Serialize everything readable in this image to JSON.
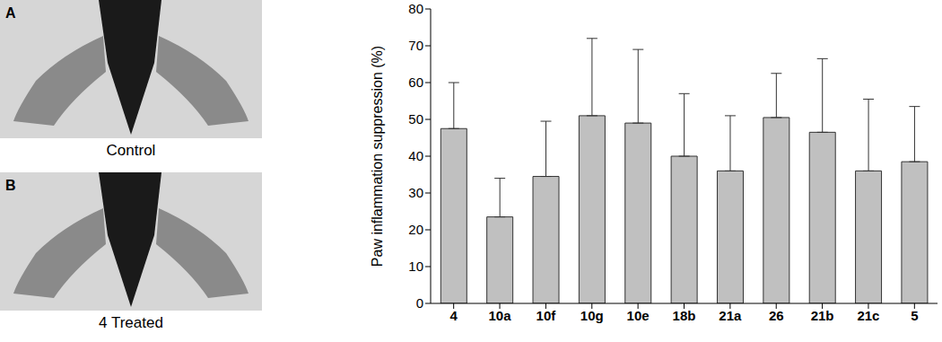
{
  "panels": [
    {
      "letter": "A",
      "caption": "Control"
    },
    {
      "letter": "B",
      "caption": "4 Treated"
    }
  ],
  "chart_data": {
    "type": "bar",
    "y_label": "Paw inflammation suppression (%)",
    "categories": [
      "4",
      "10a",
      "10f",
      "10g",
      "10e",
      "18b",
      "21a",
      "26",
      "21b",
      "21c",
      "5"
    ],
    "values": [
      47.5,
      23.5,
      34.5,
      51,
      49,
      40,
      36,
      50.5,
      46.5,
      36,
      38.5
    ],
    "errors": [
      12.5,
      10.5,
      15,
      21,
      20,
      17,
      15,
      12,
      20,
      19.5,
      15
    ],
    "color": "#c0c0c0",
    "ylim": [
      0,
      80
    ],
    "yticks": [
      0,
      10,
      20,
      30,
      40,
      50,
      60,
      70,
      80
    ],
    "grid": false
  }
}
